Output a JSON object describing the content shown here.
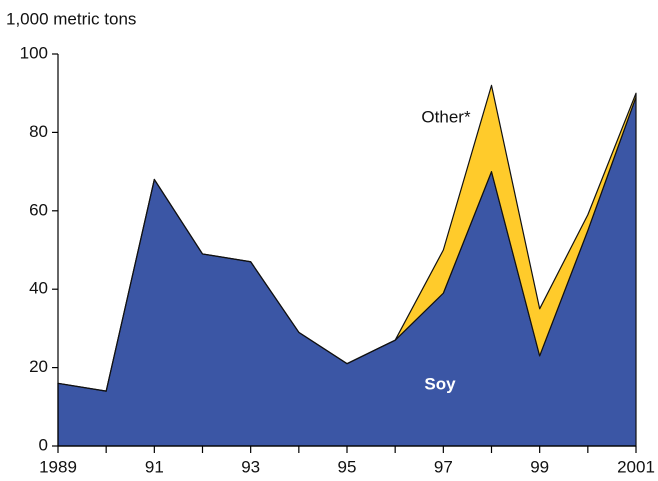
{
  "chart_data": {
    "type": "stacked-area",
    "y_axis_label": "1,000 metric tons",
    "categories": [
      "1989",
      null,
      "91",
      null,
      "93",
      null,
      "95",
      null,
      "97",
      null,
      "99",
      null,
      "2001"
    ],
    "series": [
      {
        "name": "Soy",
        "color": "#3b56a5",
        "values": [
          16,
          14,
          68,
          49,
          47,
          29,
          21,
          27,
          39,
          70,
          23,
          55,
          89
        ]
      },
      {
        "name": "Other*",
        "color": "#ffcb2b",
        "values": [
          0,
          0,
          0,
          0,
          0,
          0,
          0,
          0,
          11,
          22,
          12,
          4,
          1
        ]
      }
    ],
    "ylim": [
      0,
      100
    ],
    "yticks": [
      0,
      20,
      40,
      60,
      80,
      100
    ]
  }
}
